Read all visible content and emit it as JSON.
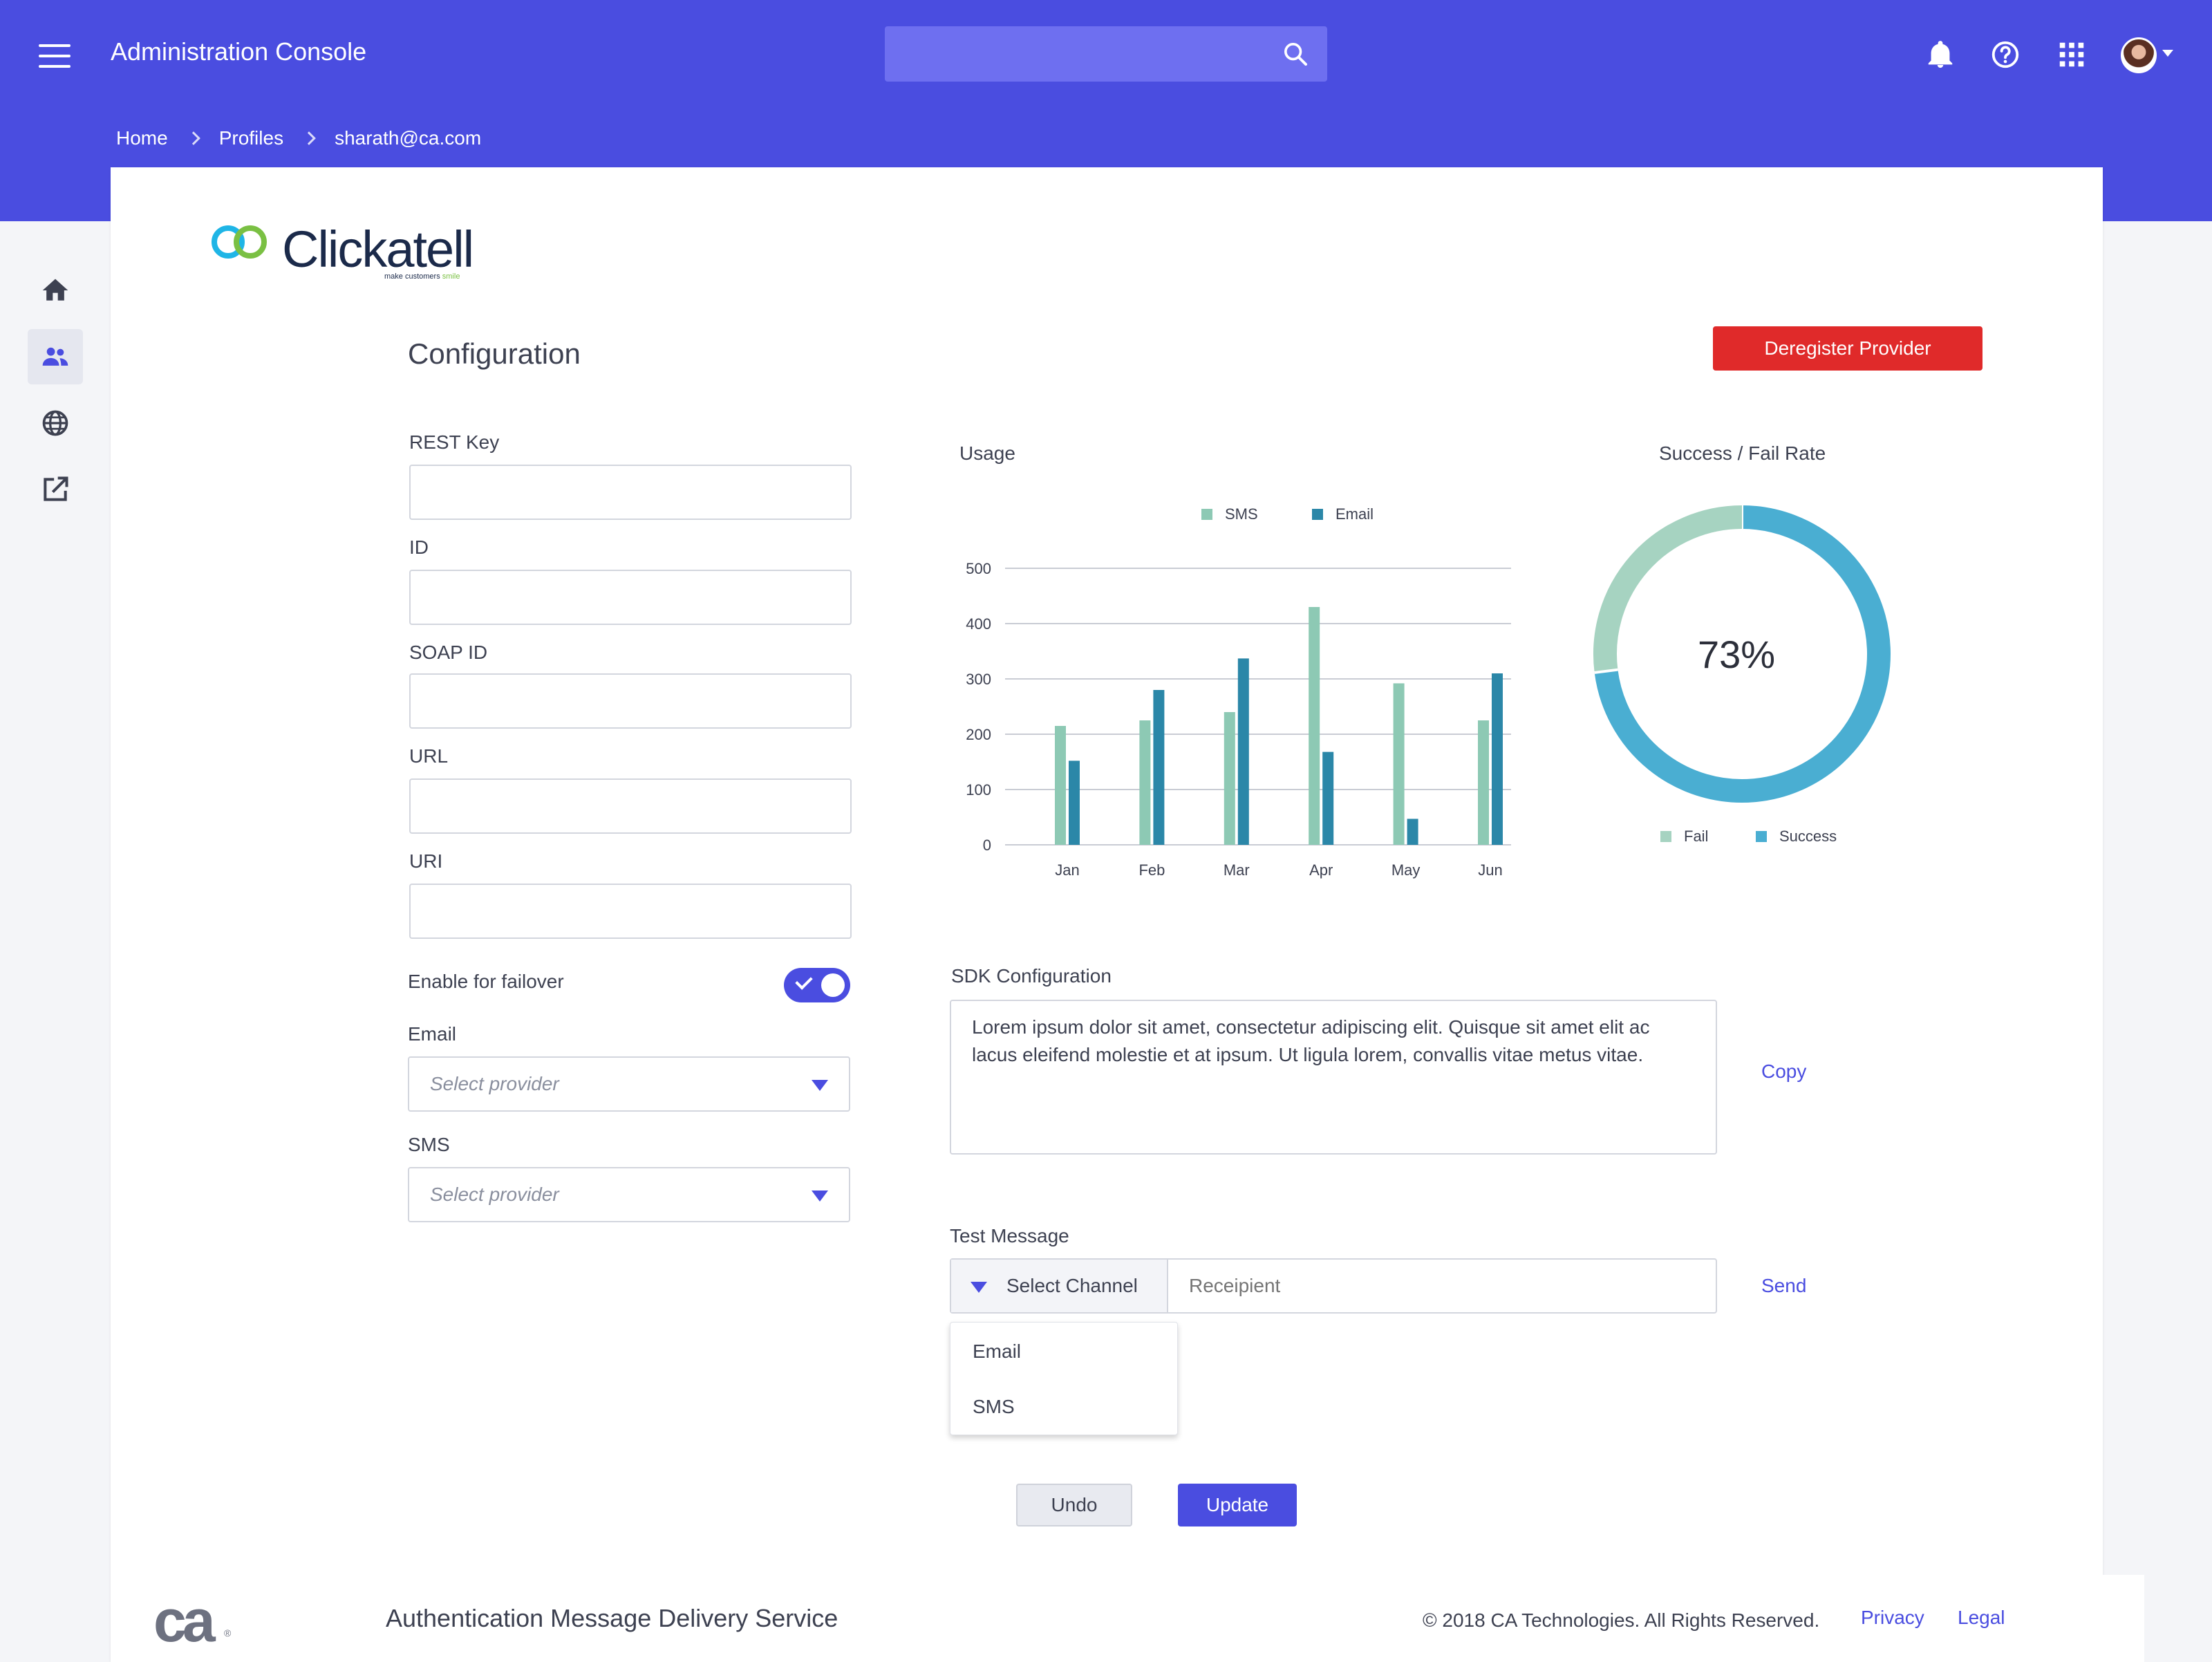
{
  "header": {
    "title": "Administration Console",
    "search_placeholder": "",
    "icons": [
      "bell-icon",
      "help-icon",
      "apps-grid-icon",
      "avatar"
    ]
  },
  "breadcrumb": [
    "Home",
    "Profiles",
    "sharath@ca.com"
  ],
  "sidebar": {
    "items": [
      {
        "icon": "home-icon"
      },
      {
        "icon": "users-icon",
        "active": true
      },
      {
        "icon": "globe-icon"
      },
      {
        "icon": "external-link-icon"
      }
    ]
  },
  "brand": {
    "name": "Clickatell",
    "tagline_prefix": "make customers",
    "tagline_accent": "smile"
  },
  "config": {
    "title": "Configuration",
    "deregister_label": "Deregister Provider",
    "fields": [
      {
        "label": "REST Key",
        "value": ""
      },
      {
        "label": "ID",
        "value": ""
      },
      {
        "label": "SOAP ID",
        "value": ""
      },
      {
        "label": "URL",
        "value": ""
      },
      {
        "label": "URI",
        "value": ""
      }
    ],
    "failover_label": "Enable for failover",
    "failover_enabled": true,
    "email_label": "Email",
    "email_placeholder": "Select provider",
    "sms_label": "SMS",
    "sms_placeholder": "Select provider"
  },
  "chart_data": [
    {
      "type": "bar",
      "title": "Usage",
      "categories": [
        "Jan",
        "Feb",
        "Mar",
        "Apr",
        "May",
        "Jun"
      ],
      "series": [
        {
          "name": "SMS",
          "values": [
            215,
            225,
            240,
            430,
            292,
            225
          ],
          "color": "#8dc9b4"
        },
        {
          "name": "Email",
          "values": [
            152,
            280,
            337,
            168,
            47,
            310
          ],
          "color": "#2b87a8"
        }
      ],
      "ylim": [
        0,
        500
      ],
      "yticks": [
        "0",
        "100",
        "200",
        "300",
        "400",
        "500"
      ],
      "legend": "top",
      "grid": true
    },
    {
      "type": "pie",
      "title": "Success / Fail Rate",
      "center_label": "73%",
      "slices": [
        {
          "name": "Fail",
          "value": 27,
          "color": "#a6d3c1"
        },
        {
          "name": "Success",
          "value": 73,
          "color": "#4aaed2"
        }
      ],
      "legend": "bottom"
    }
  ],
  "sdk": {
    "label": "SDK Configuration",
    "text": "Lorem ipsum dolor sit amet, consectetur adipiscing elit. Quisque sit amet elit ac lacus eleifend molestie et at ipsum. Ut ligula lorem, convallis vitae metus vitae.",
    "copy_label": "Copy"
  },
  "test_message": {
    "label": "Test Message",
    "channel_label": "Select Channel",
    "recipient_placeholder": "Receipient",
    "send_label": "Send",
    "channel_options": [
      "Email",
      "SMS"
    ]
  },
  "actions": {
    "undo_label": "Undo",
    "update_label": "Update"
  },
  "footer": {
    "logo": "ca",
    "title": "Authentication Message Delivery Service",
    "copyright": "© 2018 CA Technologies. All Rights Reserved.",
    "privacy_label": "Privacy",
    "legal_label": "Legal"
  }
}
